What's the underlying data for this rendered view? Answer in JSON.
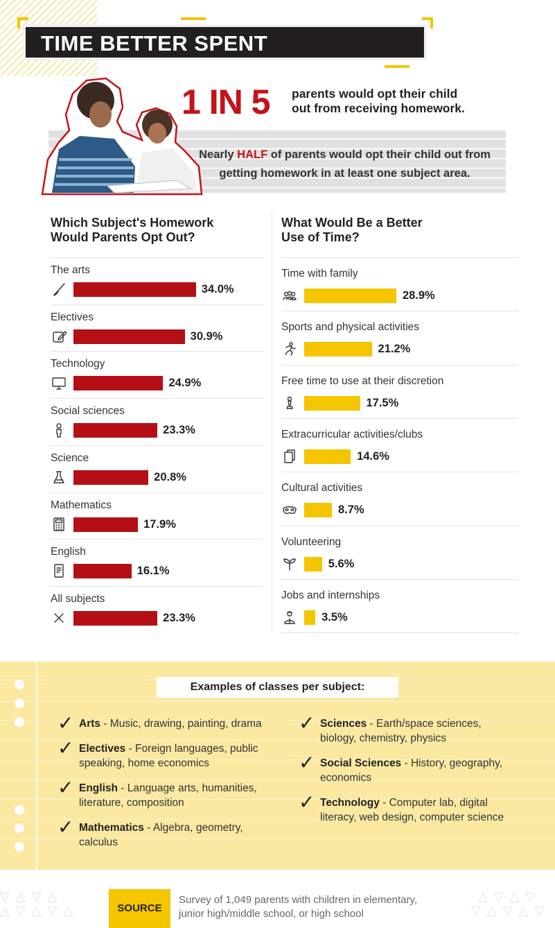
{
  "header": {
    "title": "TIME BETTER SPENT"
  },
  "hero": {
    "big_stat": "1 IN 5",
    "stat_line1": "parents would opt their child",
    "stat_line2": "out from receiving homework.",
    "half_pre": "Nearly ",
    "half_highlight": "HALF",
    "half_line1_post": " of parents would opt their child out from",
    "half_line2": "getting homework in at least one subject area."
  },
  "left_column": {
    "title_line1": "Which Subject's Homework",
    "title_line2": "Would Parents Opt Out?"
  },
  "right_column": {
    "title_line1": "What Would Be a Better",
    "title_line2": "Use of Time?"
  },
  "chart_data": [
    {
      "type": "bar",
      "orientation": "horizontal",
      "title": "Which Subject's Homework Would Parents Opt Out?",
      "categories": [
        "The arts",
        "Electives",
        "Technology",
        "Social sciences",
        "Science",
        "Mathematics",
        "English",
        "All subjects"
      ],
      "values": [
        34.0,
        30.9,
        24.9,
        23.3,
        20.8,
        17.9,
        16.1,
        23.3
      ],
      "labels": [
        "34.0%",
        "30.9%",
        "24.9%",
        "23.3%",
        "20.8%",
        "17.9%",
        "16.1%",
        "23.3%"
      ],
      "icons": [
        "brush-icon",
        "edit-icon",
        "monitor-icon",
        "person-icon",
        "flask-icon",
        "calculator-icon",
        "book-icon",
        "x-icon"
      ],
      "color": "#b30f15"
    },
    {
      "type": "bar",
      "orientation": "horizontal",
      "title": "What Would Be a Better Use of Time?",
      "categories": [
        "Time with family",
        "Sports and physical activities",
        "Free time to use at their discretion",
        "Extracurricular activities/clubs",
        "Cultural activities",
        "Volunteering",
        "Jobs and internships"
      ],
      "values": [
        28.9,
        21.2,
        17.5,
        14.6,
        8.7,
        5.6,
        3.5
      ],
      "labels": [
        "28.9%",
        "21.2%",
        "17.5%",
        "14.6%",
        "8.7%",
        "5.6%",
        "3.5%"
      ],
      "icons": [
        "family-icon",
        "runner-icon",
        "chess-pawn-icon",
        "copy-icon",
        "mask-icon",
        "sprout-icon",
        "worker-icon"
      ],
      "color": "#f5c500"
    }
  ],
  "examples": {
    "title": "Examples of classes per subject:",
    "left": [
      {
        "name": "Arts",
        "desc": " - Music, drawing, painting, drama",
        "desc2": ""
      },
      {
        "name": "Electives",
        "desc": " - Foreign languages, public",
        "desc2": "speaking, home economics"
      },
      {
        "name": "English",
        "desc": " - Language arts, humanities,",
        "desc2": "literature, composition"
      },
      {
        "name": "Mathematics",
        "desc": " - Algebra, geometry,",
        "desc2": "calculus"
      }
    ],
    "right": [
      {
        "name": "Sciences",
        "desc": " - Earth/space sciences,",
        "desc2": "biology, chemistry, physics"
      },
      {
        "name": "Social Sciences",
        "desc": " - History, geography,",
        "desc2": "economics"
      },
      {
        "name": "Technology",
        "desc": " - Computer lab, digital",
        "desc2": "literacy, web design, computer science"
      }
    ]
  },
  "source": {
    "label": "SOURCE",
    "line1": "Survey of 1,049 parents with children in elementary,",
    "line2": "junior high/middle school, or high school"
  },
  "colors": {
    "red": "#b30f15",
    "gold": "#f5c500",
    "dark": "#231f20",
    "panel": "#fbe9a2"
  }
}
